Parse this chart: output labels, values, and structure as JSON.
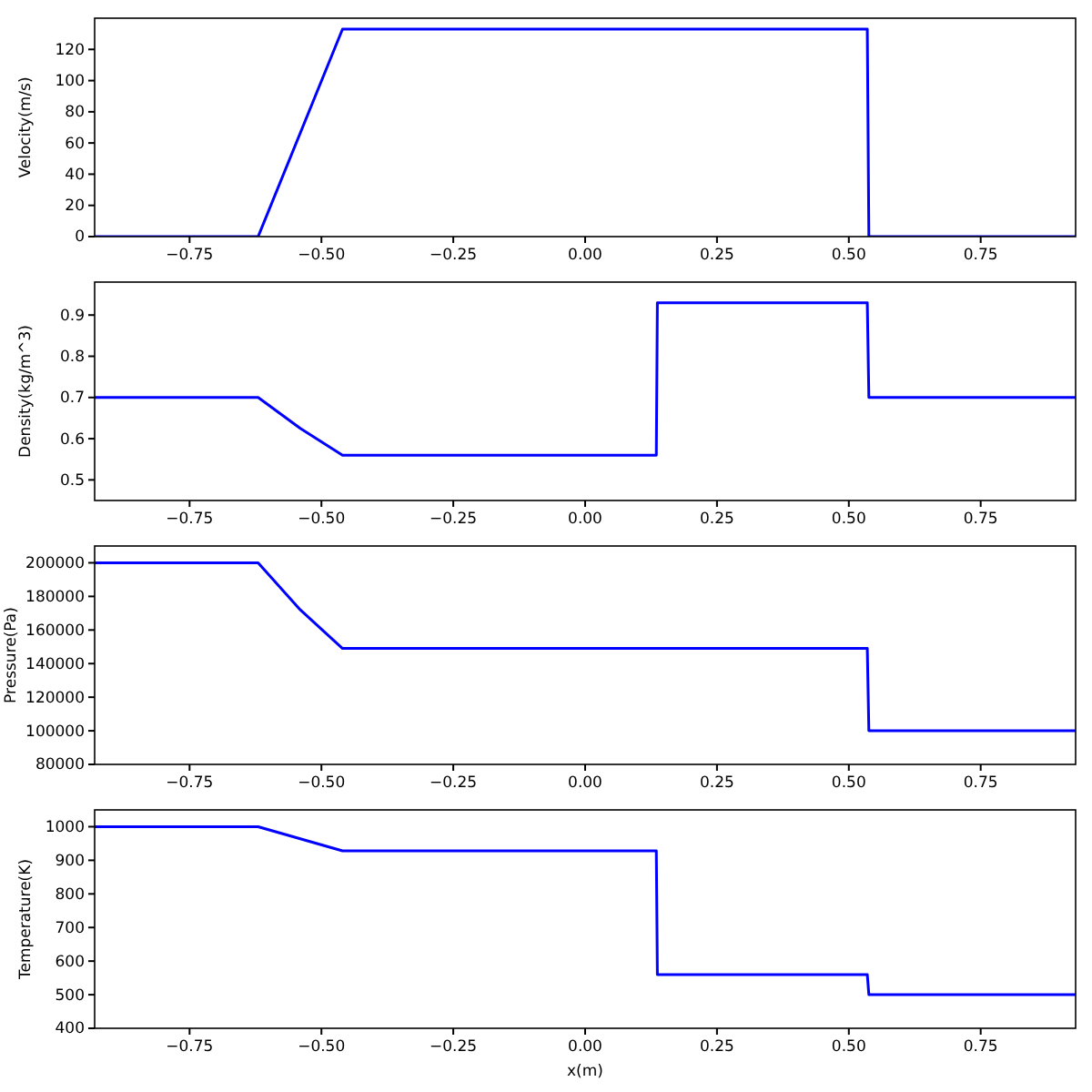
{
  "chart_data": [
    {
      "type": "line",
      "ylabel": "Velocity(m/s)",
      "xlim": [
        -0.93,
        0.93
      ],
      "xticks": [
        {
          "value": -0.75,
          "label": "−0.75"
        },
        {
          "value": -0.5,
          "label": "−0.50"
        },
        {
          "value": -0.25,
          "label": "−0.25"
        },
        {
          "value": 0,
          "label": "0.00"
        },
        {
          "value": 0.25,
          "label": "0.25"
        },
        {
          "value": 0.5,
          "label": "0.50"
        },
        {
          "value": 0.75,
          "label": "0.75"
        }
      ],
      "ylim": [
        0,
        140
      ],
      "yticks": [
        0,
        20,
        40,
        60,
        80,
        100,
        120
      ],
      "grid": false,
      "series": [
        {
          "color": "#0000ff",
          "x": [
            -0.93,
            -0.62,
            -0.46,
            0.535,
            0.538,
            0.93
          ],
          "values": [
            0,
            0,
            133,
            133,
            0,
            0
          ]
        }
      ]
    },
    {
      "type": "line",
      "ylabel": "Density(kg/m^3)",
      "xlim": [
        -0.93,
        0.93
      ],
      "xticks": [
        {
          "value": -0.75,
          "label": "−0.75"
        },
        {
          "value": -0.5,
          "label": "−0.50"
        },
        {
          "value": -0.25,
          "label": "−0.25"
        },
        {
          "value": 0,
          "label": "0.00"
        },
        {
          "value": 0.25,
          "label": "0.25"
        },
        {
          "value": 0.5,
          "label": "0.50"
        },
        {
          "value": 0.75,
          "label": "0.75"
        }
      ],
      "ylim": [
        0.45,
        0.98
      ],
      "yticks": [
        0.5,
        0.6,
        0.7,
        0.8,
        0.9
      ],
      "grid": false,
      "series": [
        {
          "color": "#0000ff",
          "x": [
            -0.93,
            -0.62,
            -0.54,
            -0.46,
            0.135,
            0.137,
            0.535,
            0.538,
            0.93
          ],
          "values": [
            0.7,
            0.7,
            0.625,
            0.56,
            0.56,
            0.93,
            0.93,
            0.7,
            0.7
          ]
        }
      ]
    },
    {
      "type": "line",
      "ylabel": "Pressure(Pa)",
      "xlim": [
        -0.93,
        0.93
      ],
      "xticks": [
        {
          "value": -0.75,
          "label": "−0.75"
        },
        {
          "value": -0.5,
          "label": "−0.50"
        },
        {
          "value": -0.25,
          "label": "−0.25"
        },
        {
          "value": 0,
          "label": "0.00"
        },
        {
          "value": 0.25,
          "label": "0.25"
        },
        {
          "value": 0.5,
          "label": "0.50"
        },
        {
          "value": 0.75,
          "label": "0.75"
        }
      ],
      "ylim": [
        80000,
        210000
      ],
      "yticks": [
        80000,
        100000,
        120000,
        140000,
        160000,
        180000,
        200000
      ],
      "grid": false,
      "series": [
        {
          "color": "#0000ff",
          "x": [
            -0.93,
            -0.62,
            -0.54,
            -0.46,
            0.535,
            0.538,
            0.93
          ],
          "values": [
            200000,
            200000,
            172000,
            149000,
            149000,
            100000,
            100000
          ]
        }
      ]
    },
    {
      "type": "line",
      "ylabel": "Temperature(K)",
      "xlabel": "x(m)",
      "xlim": [
        -0.93,
        0.93
      ],
      "xticks": [
        {
          "value": -0.75,
          "label": "−0.75"
        },
        {
          "value": -0.5,
          "label": "−0.50"
        },
        {
          "value": -0.25,
          "label": "−0.25"
        },
        {
          "value": 0,
          "label": "0.00"
        },
        {
          "value": 0.25,
          "label": "0.25"
        },
        {
          "value": 0.5,
          "label": "0.50"
        },
        {
          "value": 0.75,
          "label": "0.75"
        }
      ],
      "ylim": [
        400,
        1050
      ],
      "yticks": [
        400,
        500,
        600,
        700,
        800,
        900,
        1000
      ],
      "grid": false,
      "series": [
        {
          "color": "#0000ff",
          "x": [
            -0.93,
            -0.62,
            -0.46,
            0.135,
            0.137,
            0.535,
            0.538,
            0.93
          ],
          "values": [
            1000,
            1000,
            928,
            928,
            560,
            560,
            500,
            500
          ]
        }
      ]
    }
  ]
}
